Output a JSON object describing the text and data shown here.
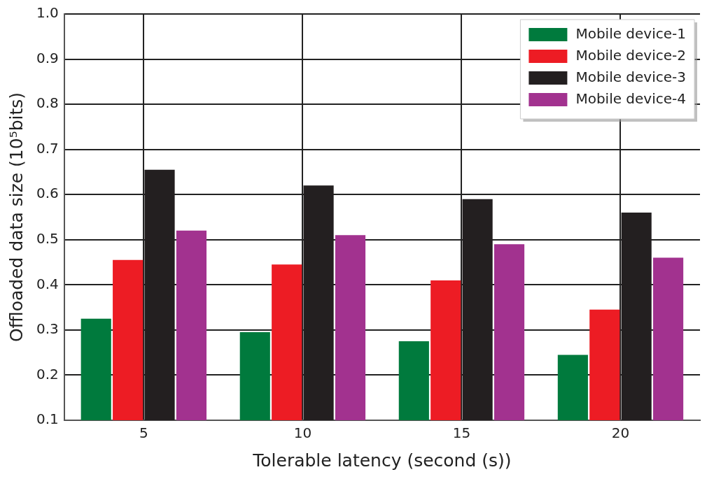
{
  "chart_data": {
    "type": "bar",
    "xlabel": "Tolerable latency (second (s))",
    "ylabel": "Offloaded data size (10⁵bits)",
    "categories": [
      "5",
      "10",
      "15",
      "20"
    ],
    "series": [
      {
        "name": "Mobile device-1",
        "color": "#007a3d",
        "values": [
          0.325,
          0.295,
          0.275,
          0.245
        ]
      },
      {
        "name": "Mobile device-2",
        "color": "#ed1c24",
        "values": [
          0.455,
          0.445,
          0.41,
          0.345
        ]
      },
      {
        "name": "Mobile device-3",
        "color": "#231f20",
        "values": [
          0.655,
          0.62,
          0.59,
          0.56
        ]
      },
      {
        "name": "Mobile device-4",
        "color": "#a2328f",
        "values": [
          0.52,
          0.51,
          0.49,
          0.46
        ]
      }
    ],
    "ylim": [
      0.1,
      1.0
    ],
    "yticks": [
      0.1,
      0.2,
      0.3,
      0.4,
      0.5,
      0.6,
      0.7,
      0.8,
      0.9,
      {
        "value": 1.0,
        "label": "1.0"
      }
    ],
    "grid": true,
    "legend": "top right"
  }
}
